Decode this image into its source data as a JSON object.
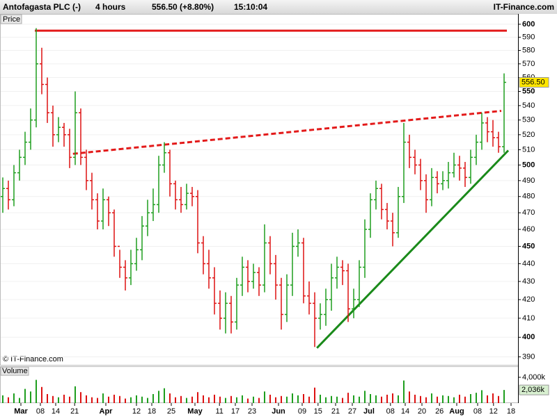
{
  "chart_data": {
    "type": "ohlc",
    "title": "Antofagasta PLC (-)",
    "interval": "4 hours",
    "quote": "556.50 (+8.80%)",
    "time": "15:10:04",
    "source": "IT-Finance.com",
    "panel_label": "Price",
    "copyright": "© IT-Finance.com",
    "open": [
      480,
      485,
      478,
      495,
      505,
      515,
      530,
      570,
      555,
      535,
      520,
      525,
      520,
      505,
      535,
      505,
      490,
      478,
      465,
      478,
      470,
      450,
      438,
      432,
      440,
      448,
      462,
      470,
      475,
      500,
      508,
      488,
      478,
      475,
      482,
      480,
      452,
      440,
      432,
      418,
      410,
      418,
      408,
      428,
      438,
      430,
      435,
      428,
      452,
      440,
      428,
      412,
      428,
      450,
      452,
      422,
      418,
      410,
      412,
      420,
      432,
      438,
      436,
      415,
      420,
      438,
      460,
      478,
      485,
      472,
      465,
      458,
      480,
      515,
      505,
      500,
      490,
      478,
      492,
      488,
      490,
      495,
      500,
      498,
      492,
      505,
      515,
      528,
      522,
      518,
      512
    ],
    "high": [
      492,
      490,
      500,
      510,
      522,
      538,
      597,
      582,
      560,
      540,
      532,
      528,
      524,
      550,
      538,
      510,
      495,
      482,
      485,
      480,
      472,
      448,
      442,
      448,
      455,
      468,
      478,
      485,
      506,
      515,
      510,
      490,
      486,
      488,
      486,
      484,
      456,
      448,
      438,
      425,
      424,
      422,
      432,
      444,
      442,
      440,
      438,
      463,
      456,
      445,
      432,
      434,
      458,
      460,
      455,
      430,
      424,
      418,
      426,
      440,
      444,
      442,
      440,
      426,
      442,
      466,
      482,
      490,
      488,
      476,
      470,
      486,
      528,
      520,
      510,
      504,
      494,
      498,
      496,
      496,
      502,
      508,
      506,
      502,
      510,
      520,
      535,
      532,
      530,
      522,
      563
    ],
    "low": [
      470,
      472,
      474,
      490,
      500,
      510,
      525,
      548,
      528,
      512,
      515,
      512,
      498,
      500,
      500,
      484,
      472,
      460,
      460,
      462,
      444,
      432,
      425,
      428,
      436,
      442,
      456,
      465,
      470,
      495,
      480,
      472,
      470,
      472,
      474,
      446,
      434,
      426,
      412,
      404,
      402,
      402,
      404,
      422,
      424,
      426,
      422,
      424,
      434,
      420,
      404,
      408,
      422,
      444,
      418,
      412,
      395,
      404,
      406,
      414,
      426,
      428,
      408,
      410,
      416,
      432,
      455,
      472,
      466,
      460,
      450,
      455,
      476,
      498,
      494,
      484,
      470,
      474,
      482,
      484,
      485,
      492,
      490,
      486,
      488,
      500,
      510,
      515,
      512,
      508,
      508
    ],
    "close": [
      485,
      478,
      495,
      505,
      515,
      530,
      570,
      555,
      535,
      520,
      525,
      520,
      505,
      535,
      505,
      490,
      478,
      465,
      478,
      470,
      450,
      438,
      432,
      440,
      448,
      462,
      470,
      475,
      500,
      508,
      488,
      478,
      475,
      482,
      480,
      452,
      440,
      432,
      418,
      410,
      418,
      408,
      428,
      438,
      430,
      435,
      428,
      452,
      440,
      428,
      412,
      428,
      450,
      452,
      422,
      418,
      410,
      412,
      420,
      432,
      438,
      436,
      415,
      420,
      438,
      460,
      478,
      485,
      472,
      465,
      458,
      480,
      515,
      505,
      500,
      490,
      478,
      492,
      488,
      490,
      495,
      500,
      498,
      492,
      505,
      515,
      528,
      522,
      518,
      512,
      556.5
    ],
    "up_color": "#1e9e1e",
    "down_color": "#dd1111",
    "log_scale": true,
    "ylim": [
      387,
      607
    ],
    "yticks": [
      390,
      400,
      410,
      420,
      430,
      440,
      450,
      460,
      470,
      480,
      490,
      500,
      510,
      520,
      530,
      540,
      550,
      560,
      570,
      580,
      590,
      600
    ],
    "grid": true,
    "last_price": {
      "value": 556.5,
      "label": "556.50"
    },
    "xlim": [
      0,
      93
    ],
    "xticks": [
      {
        "value": 3.75,
        "label": "Mar"
      },
      {
        "value": 7.25,
        "label": "08"
      },
      {
        "value": 10,
        "label": "14"
      },
      {
        "value": 13.4,
        "label": "21"
      },
      {
        "value": 19,
        "label": "Apr"
      },
      {
        "value": 24.5,
        "label": "12"
      },
      {
        "value": 27.25,
        "label": "18"
      },
      {
        "value": 30.75,
        "label": "25"
      },
      {
        "value": 35,
        "label": "May"
      },
      {
        "value": 39.4,
        "label": "11"
      },
      {
        "value": 42.25,
        "label": "17"
      },
      {
        "value": 45.25,
        "label": "23"
      },
      {
        "value": 50,
        "label": "Jun"
      },
      {
        "value": 54.25,
        "label": "09"
      },
      {
        "value": 57.1,
        "label": "15"
      },
      {
        "value": 60.25,
        "label": "21"
      },
      {
        "value": 63.25,
        "label": "27"
      },
      {
        "value": 66.25,
        "label": "Jul"
      },
      {
        "value": 70.1,
        "label": "08"
      },
      {
        "value": 72.75,
        "label": "14"
      },
      {
        "value": 75.75,
        "label": "20"
      },
      {
        "value": 78.9,
        "label": "26"
      },
      {
        "value": 82,
        "label": "Aug"
      },
      {
        "value": 85.75,
        "label": "08"
      },
      {
        "value": 88.6,
        "label": "12"
      },
      {
        "value": 91.75,
        "label": "18"
      }
    ],
    "trendlines": [
      {
        "x": [
          6.25,
          91
        ],
        "y": [
          595,
          595
        ],
        "color": "#e31a1a",
        "style": "solid"
      },
      {
        "x": [
          13.1,
          90
        ],
        "y": [
          507.3,
          536.3
        ],
        "color": "#e31a1a",
        "style": "dashed"
      },
      {
        "x": [
          56.9,
          91.25
        ],
        "y": [
          394.5,
          509.5
        ],
        "color": "#1a8a1a",
        "style": "solid"
      }
    ],
    "volume": {
      "label": "Volume",
      "values": [
        1200,
        900,
        1500,
        800,
        2200,
        1800,
        3600,
        2500,
        1400,
        1100,
        900,
        1300,
        1000,
        2600,
        1700,
        1200,
        900,
        800,
        1500,
        1000,
        1300,
        1100,
        700,
        900,
        1200,
        1000,
        800,
        1400,
        1900,
        2300,
        1500,
        900,
        1100,
        800,
        1000,
        1700,
        1200,
        900,
        1300,
        1000,
        800,
        1100,
        900,
        1200,
        700,
        1000,
        800,
        1800,
        1300,
        900,
        1100,
        1000,
        1500,
        1200,
        1400,
        1000,
        2400,
        1300,
        900,
        1100,
        1000,
        800,
        1600,
        1200,
        1000,
        1900,
        1400,
        1200,
        1000,
        1300,
        1500,
        1200,
        3500,
        1800,
        1300,
        1100,
        900,
        1500,
        1000,
        1200,
        1100,
        900,
        1300,
        1000,
        1400,
        1600,
        2000,
        1200,
        1500,
        1100,
        2036
      ],
      "ylim": [
        0,
        5600
      ],
      "yticks": [
        {
          "value": 4000,
          "label": "4,000k"
        }
      ],
      "last": {
        "value": 2036,
        "label": "2,036k"
      }
    }
  }
}
